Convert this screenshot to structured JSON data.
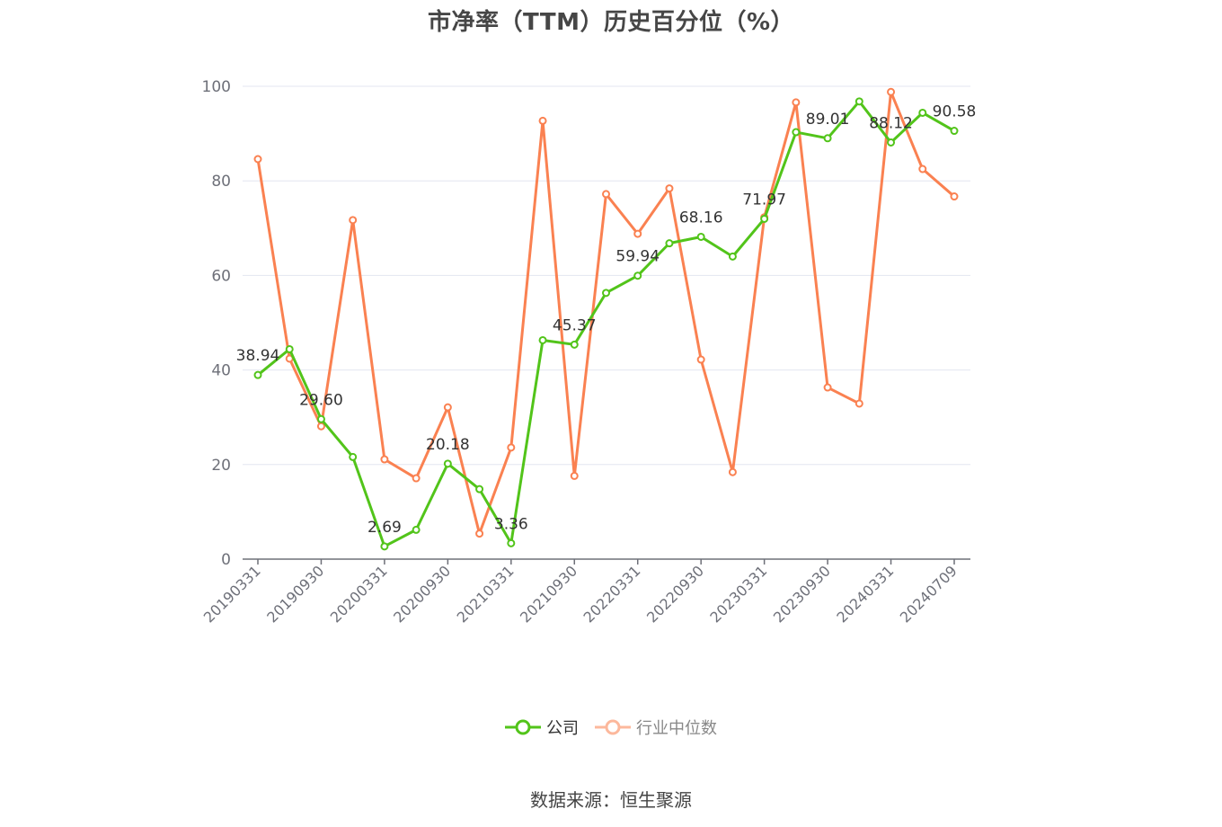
{
  "title": "市净率（TTM）历史百分位（%）",
  "legend": {
    "company_label": "公司",
    "industry_label": "行业中位数"
  },
  "source": "数据来源：恒生聚源",
  "colors": {
    "company": "#52c41a",
    "industry": "#fa8151",
    "grid": "#e3e6f0",
    "axis": "#6e7079",
    "tick_text": "#6e7079",
    "label_text": "#333333"
  },
  "chart_data": {
    "type": "line",
    "title": "市净率（TTM）历史百分位（%）",
    "xlabel": "",
    "ylabel": "",
    "ylim": [
      0,
      100
    ],
    "yticks": [
      0,
      20,
      40,
      60,
      80,
      100
    ],
    "grid": true,
    "legend_position": "bottom",
    "x": [
      "20190331",
      "20190630",
      "20190930",
      "20191231",
      "20200331",
      "20200630",
      "20200930",
      "20201231",
      "20210331",
      "20210630",
      "20210930",
      "20211231",
      "20220331",
      "20220630",
      "20220930",
      "20221231",
      "20230331",
      "20230630",
      "20230930",
      "20231231",
      "20240331",
      "20240630",
      "20240709"
    ],
    "xtick_labels": [
      "20190331",
      "20190930",
      "20200331",
      "20200930",
      "20210331",
      "20210930",
      "20220331",
      "20220930",
      "20230331",
      "20230930",
      "20240331",
      "20240709"
    ],
    "series": [
      {
        "name": "公司",
        "values": [
          38.94,
          44.4,
          29.6,
          21.6,
          2.69,
          6.2,
          20.18,
          14.8,
          3.36,
          46.3,
          45.37,
          56.3,
          59.94,
          66.8,
          68.16,
          64.0,
          71.97,
          90.3,
          89.01,
          96.8,
          88.12,
          94.4,
          90.58
        ],
        "labeled_points": {
          "0": "38.94",
          "2": "29.60",
          "4": "2.69",
          "6": "20.18",
          "8": "3.36",
          "10": "45.37",
          "12": "59.94",
          "14": "68.16",
          "16": "71.97",
          "18": "89.01",
          "20": "88.12",
          "22": "90.58"
        }
      },
      {
        "name": "行业中位数",
        "values": [
          84.6,
          42.4,
          28.1,
          71.7,
          21.1,
          17.1,
          32.1,
          5.4,
          23.6,
          92.7,
          17.6,
          77.2,
          68.8,
          78.4,
          42.2,
          18.4,
          72.3,
          96.6,
          36.3,
          32.9,
          98.8,
          82.5,
          76.7
        ]
      }
    ]
  }
}
